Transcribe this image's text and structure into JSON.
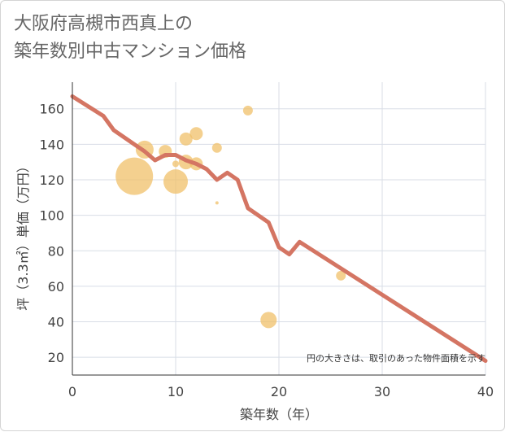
{
  "title_line1": "大阪府高槻市西真上の",
  "title_line2": "築年数別中古マンション価格",
  "chart_data": {
    "type": "scatter",
    "xlabel": "築年数（年）",
    "ylabel": "坪（3.3㎡）単価（万円）",
    "xlim": [
      0,
      40
    ],
    "ylim": [
      10,
      175
    ],
    "x_ticks": [
      0,
      10,
      20,
      30,
      40
    ],
    "y_ticks": [
      20,
      40,
      60,
      80,
      100,
      120,
      140,
      160
    ],
    "grid": true,
    "note": "円の大きさは、取引のあった物件面積を示す",
    "colors": {
      "bubble": "#f0c069",
      "line": "#d47563",
      "grid": "#d8dde6"
    },
    "bubbles": [
      {
        "x": 6,
        "y": 122,
        "size": 23
      },
      {
        "x": 7,
        "y": 137,
        "size": 11
      },
      {
        "x": 9,
        "y": 136,
        "size": 8
      },
      {
        "x": 10,
        "y": 119,
        "size": 15
      },
      {
        "x": 10,
        "y": 129,
        "size": 4
      },
      {
        "x": 11,
        "y": 143,
        "size": 8
      },
      {
        "x": 11,
        "y": 130,
        "size": 9
      },
      {
        "x": 12,
        "y": 146,
        "size": 8
      },
      {
        "x": 12,
        "y": 129,
        "size": 8
      },
      {
        "x": 14,
        "y": 138,
        "size": 6
      },
      {
        "x": 14,
        "y": 107,
        "size": 2
      },
      {
        "x": 17,
        "y": 159,
        "size": 6
      },
      {
        "x": 19,
        "y": 41,
        "size": 10
      },
      {
        "x": 26,
        "y": 66,
        "size": 6
      }
    ],
    "trend": [
      [
        0,
        167
      ],
      [
        3,
        156
      ],
      [
        4,
        148
      ],
      [
        6,
        140
      ],
      [
        7,
        136
      ],
      [
        8,
        131
      ],
      [
        9,
        134
      ],
      [
        10,
        134
      ],
      [
        11,
        131
      ],
      [
        12,
        129
      ],
      [
        13,
        126
      ],
      [
        14,
        120
      ],
      [
        15,
        124
      ],
      [
        16,
        120
      ],
      [
        17,
        104
      ],
      [
        19,
        96
      ],
      [
        20,
        82
      ],
      [
        21,
        78
      ],
      [
        22,
        85
      ],
      [
        40,
        18
      ]
    ]
  }
}
